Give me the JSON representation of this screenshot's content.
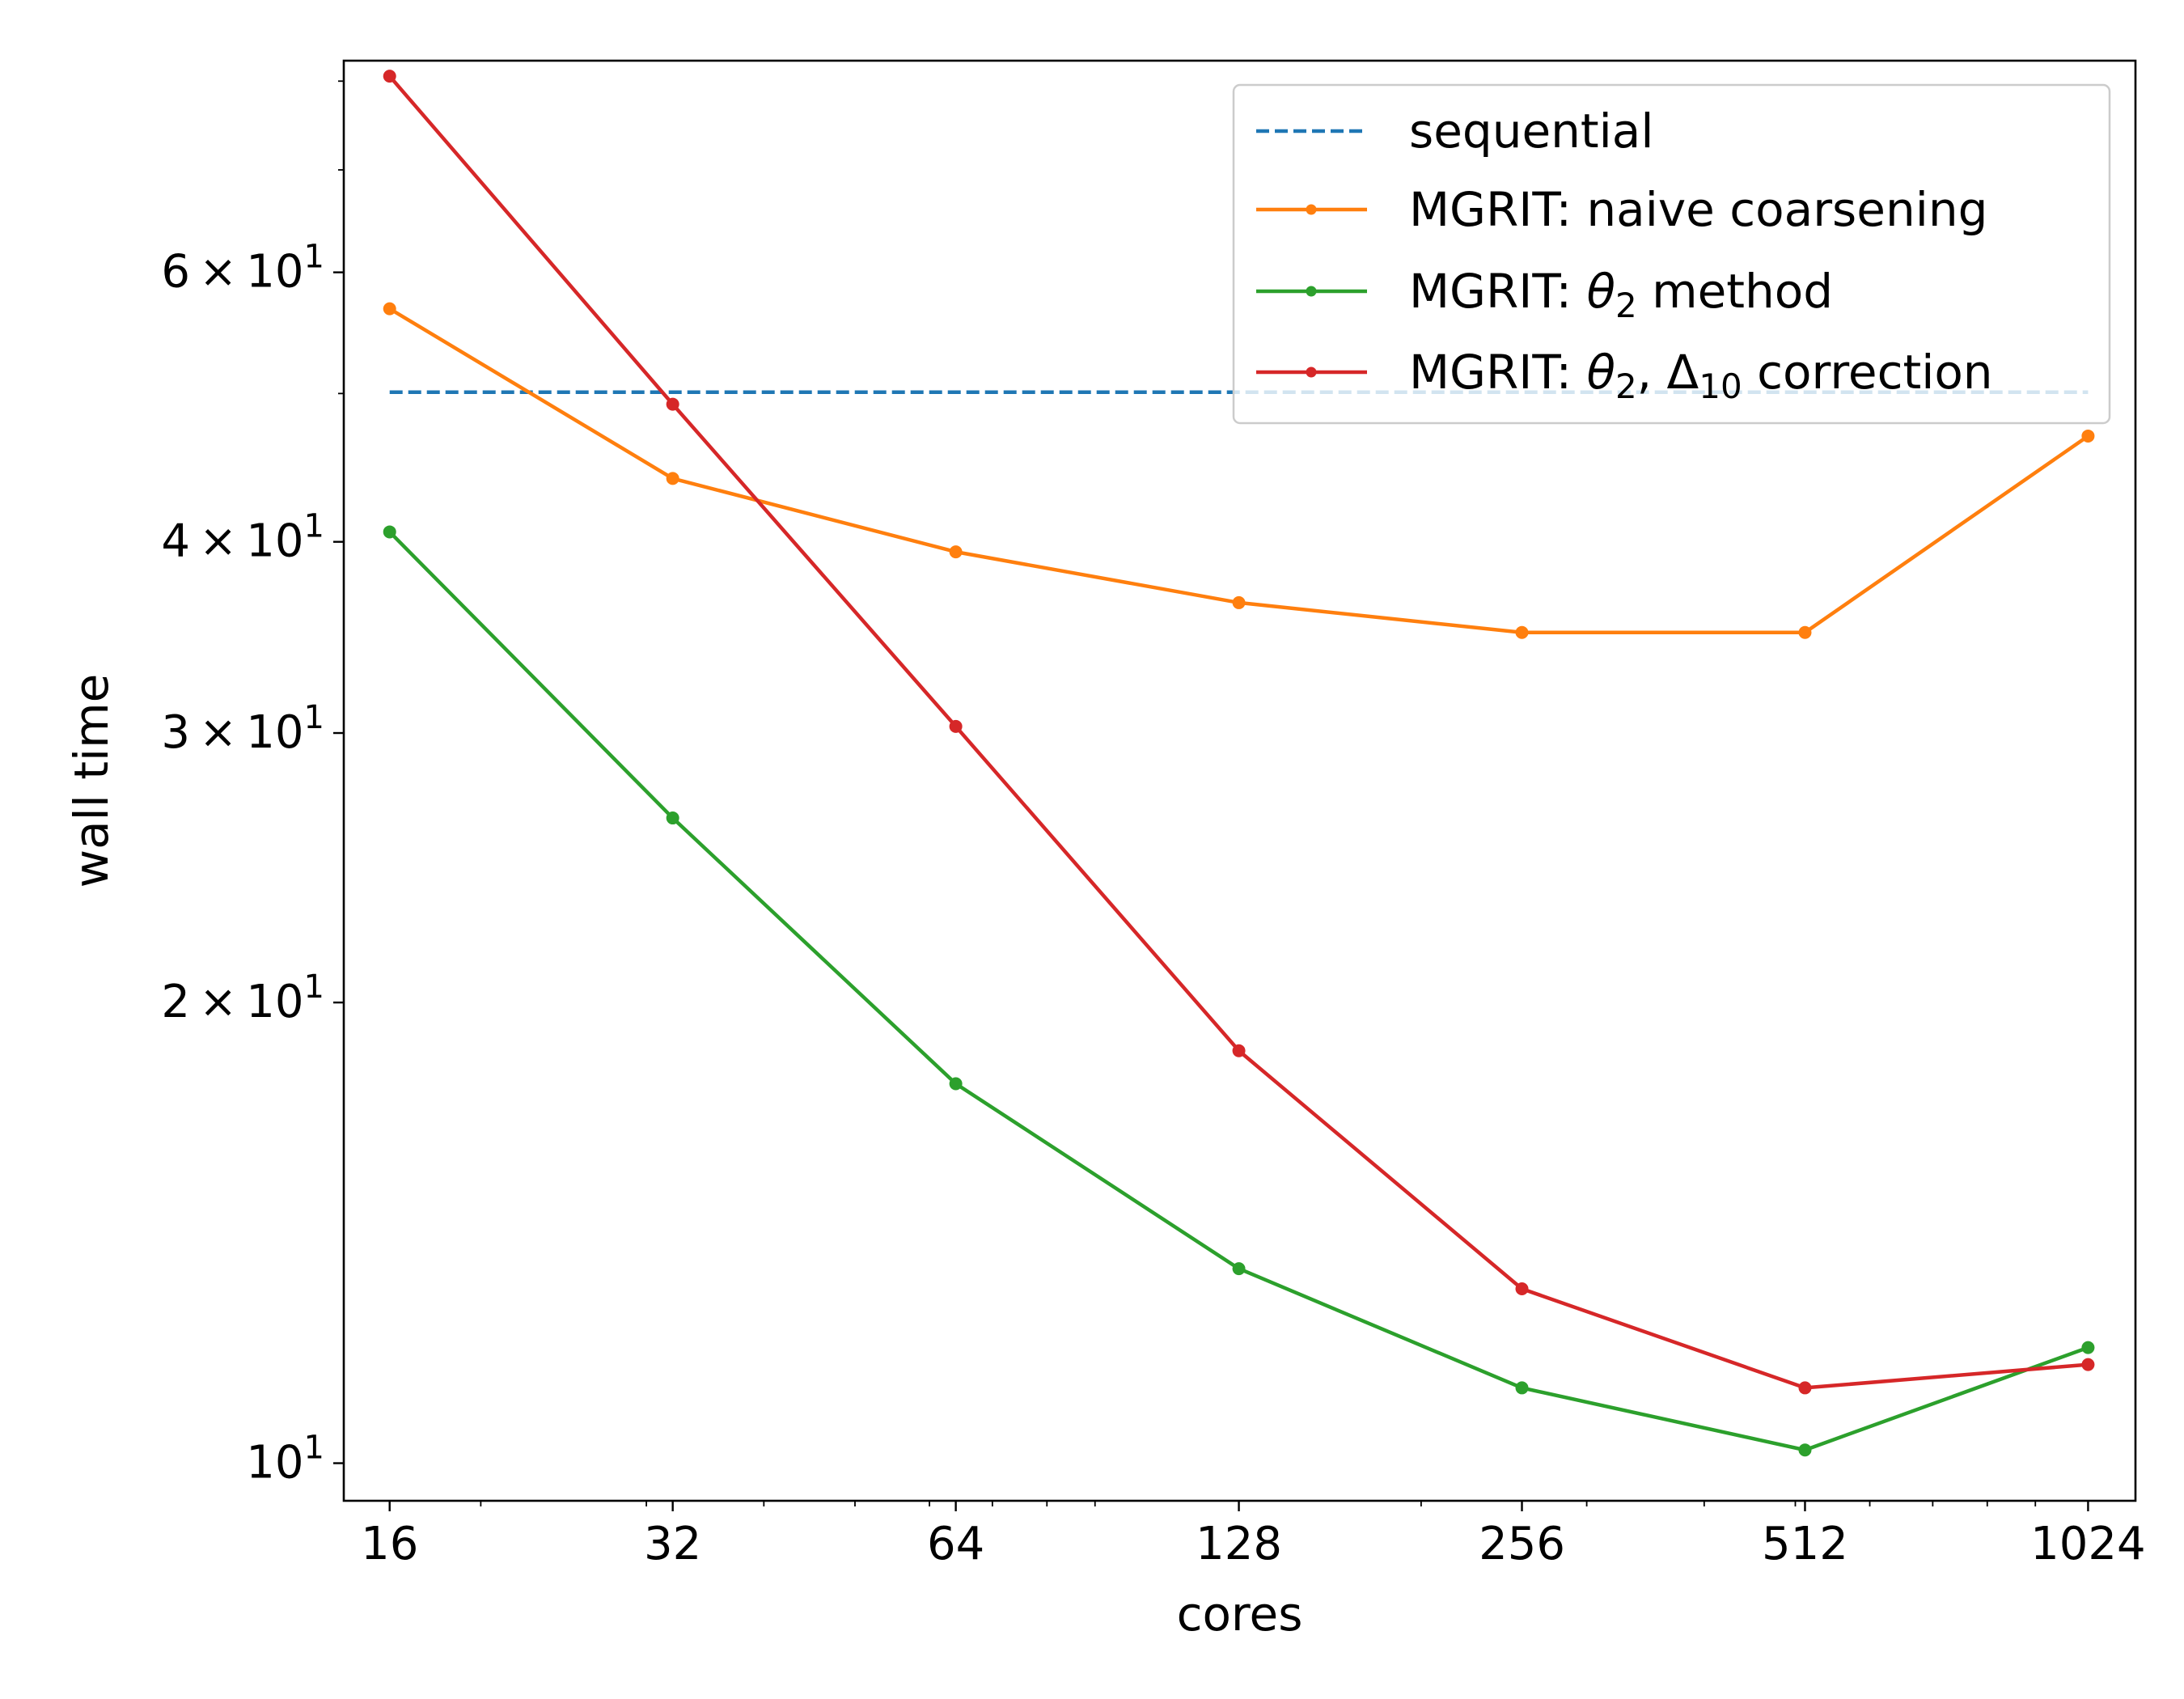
{
  "chart_data": {
    "type": "line",
    "title": "",
    "xlabel": "cores",
    "ylabel": "wall time",
    "xscale": "log2",
    "yscale": "log",
    "xlim": [
      14.3,
      1150
    ],
    "ylim": [
      9.45,
      82.5
    ],
    "x": [
      16,
      32,
      64,
      128,
      256,
      512,
      1024
    ],
    "xtick_labels": [
      "16",
      "32",
      "64",
      "128",
      "256",
      "512",
      "1024"
    ],
    "ytick_labels": [
      {
        "value": 10,
        "base": "10",
        "exp": "1",
        "mantissa": ""
      },
      {
        "value": 20,
        "base": "10",
        "exp": "1",
        "mantissa": "2"
      },
      {
        "value": 30,
        "base": "10",
        "exp": "1",
        "mantissa": "3"
      },
      {
        "value": 40,
        "base": "10",
        "exp": "1",
        "mantissa": "4"
      },
      {
        "value": 60,
        "base": "10",
        "exp": "1",
        "mantissa": "6"
      }
    ],
    "minor_y": [
      50,
      70,
      80
    ],
    "grid": false,
    "legend_position": "top-right",
    "series": [
      {
        "name": "sequential",
        "color": "#1f77b4",
        "style": "dashed",
        "markers": false,
        "values": [
          50.1,
          50.1,
          50.1,
          50.1,
          50.1,
          50.1,
          50.1
        ]
      },
      {
        "name": "MGRIT: naive coarsening",
        "color": "#ff7f0e",
        "style": "solid",
        "markers": true,
        "values": [
          56.8,
          44.0,
          39.4,
          36.5,
          34.9,
          34.9,
          46.9
        ]
      },
      {
        "name": "MGRIT: θ₂ method",
        "color": "#2ca02c",
        "style": "solid",
        "markers": true,
        "values": [
          40.6,
          26.4,
          17.7,
          13.4,
          11.2,
          10.2,
          11.9
        ]
      },
      {
        "name": "MGRIT: θ₂, Δ₁₀ correction",
        "color": "#d62728",
        "style": "solid",
        "markers": true,
        "values": [
          80.6,
          49.2,
          30.3,
          18.6,
          13.0,
          11.2,
          11.6
        ]
      }
    ],
    "legend": [
      {
        "prefix": "sequential",
        "theta": "",
        "sub1": "",
        "mid": "",
        "delta": "",
        "sub2": "",
        "suffix": ""
      },
      {
        "prefix": "MGRIT: naive coarsening",
        "theta": "",
        "sub1": "",
        "mid": "",
        "delta": "",
        "sub2": "",
        "suffix": ""
      },
      {
        "prefix": "MGRIT: ",
        "theta": "θ",
        "sub1": "2",
        "mid": " method",
        "delta": "",
        "sub2": "",
        "suffix": ""
      },
      {
        "prefix": "MGRIT: ",
        "theta": "θ",
        "sub1": "2",
        "mid": ", ",
        "delta": "Δ",
        "sub2": "10",
        "suffix": " correction"
      }
    ]
  }
}
